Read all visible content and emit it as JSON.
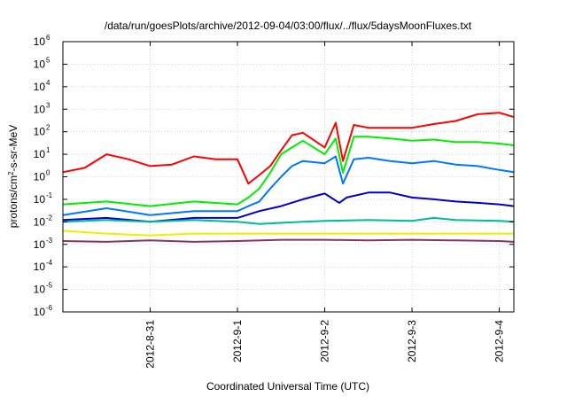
{
  "chart_data": {
    "type": "line",
    "title": "/data/run/goesPlots/archive/2012-09-04/03:00/flux/../flux/5daysMoonFluxes.txt",
    "xlabel": "Coordinated Universal Time (UTC)",
    "ylabel": "protons/cm²-s-sr-MeV",
    "ylabel_parts": {
      "pre": "protons/cm",
      "sup": "2",
      "post": "-s-sr-MeV"
    },
    "y_scale": "log",
    "ylim": [
      1e-06,
      1000000.0
    ],
    "xlim": [
      "2012-08-30 00:00",
      "2012-09-04 04:00"
    ],
    "grid": true,
    "x_ticks": [
      "2012-8-31",
      "2012-9-1",
      "2012-9-2",
      "2012-9-3",
      "2012-9-4"
    ],
    "y_ticks": [
      {
        "base": "10",
        "exp": "-6",
        "value": 1e-06
      },
      {
        "base": "10",
        "exp": "-5",
        "value": 1e-05
      },
      {
        "base": "10",
        "exp": "-4",
        "value": 0.0001
      },
      {
        "base": "10",
        "exp": "-3",
        "value": 0.001
      },
      {
        "base": "10",
        "exp": "-2",
        "value": 0.01
      },
      {
        "base": "10",
        "exp": "-1",
        "value": 0.1
      },
      {
        "base": "10",
        "exp": "0",
        "value": 1
      },
      {
        "base": "10",
        "exp": "1",
        "value": 10
      },
      {
        "base": "10",
        "exp": "2",
        "value": 100
      },
      {
        "base": "10",
        "exp": "3",
        "value": 1000
      },
      {
        "base": "10",
        "exp": "4",
        "value": 10000
      },
      {
        "base": "10",
        "exp": "5",
        "value": 100000
      },
      {
        "base": "10",
        "exp": "6",
        "value": 1000000
      }
    ],
    "series": [
      {
        "color": "#ff0000",
        "x": [
          "2012-08-30 00:00",
          "2012-08-30 06:00",
          "2012-08-30 12:00",
          "2012-08-30 18:00",
          "2012-08-31 00:00",
          "2012-08-31 06:00",
          "2012-08-31 12:00",
          "2012-08-31 18:00",
          "2012-09-01 00:00",
          "2012-09-01 03:00",
          "2012-09-01 06:00",
          "2012-09-01 09:00",
          "2012-09-01 12:00",
          "2012-09-01 15:00",
          "2012-09-01 18:00",
          "2012-09-02 00:00",
          "2012-09-02 03:00",
          "2012-09-02 05:00",
          "2012-09-02 08:00",
          "2012-09-02 12:00",
          "2012-09-02 18:00",
          "2012-09-03 00:00",
          "2012-09-03 06:00",
          "2012-09-03 12:00",
          "2012-09-03 18:00",
          "2012-09-04 00:00",
          "2012-09-04 04:00"
        ],
        "y": [
          1.6,
          2.5,
          10,
          6,
          3,
          3.5,
          8,
          6,
          6,
          0.5,
          1.2,
          3,
          15,
          70,
          90,
          20,
          250,
          5,
          200,
          150,
          150,
          150,
          220,
          300,
          600,
          700,
          450
        ]
      },
      {
        "color": "#00ee00",
        "x": [
          "2012-08-30 00:00",
          "2012-08-30 12:00",
          "2012-08-31 00:00",
          "2012-08-31 12:00",
          "2012-09-01 00:00",
          "2012-09-01 03:00",
          "2012-09-01 06:00",
          "2012-09-01 09:00",
          "2012-09-01 12:00",
          "2012-09-01 15:00",
          "2012-09-01 18:00",
          "2012-09-02 00:00",
          "2012-09-02 03:00",
          "2012-09-02 05:00",
          "2012-09-02 08:00",
          "2012-09-02 12:00",
          "2012-09-02 18:00",
          "2012-09-03 00:00",
          "2012-09-03 06:00",
          "2012-09-03 12:00",
          "2012-09-03 18:00",
          "2012-09-04 00:00",
          "2012-09-04 04:00"
        ],
        "y": [
          0.06,
          0.08,
          0.05,
          0.08,
          0.06,
          0.12,
          0.3,
          1.5,
          10,
          20,
          40,
          10,
          50,
          1.5,
          60,
          60,
          50,
          40,
          45,
          35,
          35,
          30,
          25
        ]
      },
      {
        "color": "#0077ff",
        "x": [
          "2012-08-30 00:00",
          "2012-08-30 12:00",
          "2012-08-31 00:00",
          "2012-08-31 12:00",
          "2012-09-01 00:00",
          "2012-09-01 03:00",
          "2012-09-01 06:00",
          "2012-09-01 09:00",
          "2012-09-01 12:00",
          "2012-09-01 15:00",
          "2012-09-01 18:00",
          "2012-09-02 00:00",
          "2012-09-02 03:00",
          "2012-09-02 05:00",
          "2012-09-02 08:00",
          "2012-09-02 12:00",
          "2012-09-02 18:00",
          "2012-09-03 00:00",
          "2012-09-03 06:00",
          "2012-09-03 12:00",
          "2012-09-03 18:00",
          "2012-09-04 00:00",
          "2012-09-04 04:00"
        ],
        "y": [
          0.02,
          0.04,
          0.02,
          0.03,
          0.03,
          0.05,
          0.08,
          0.3,
          1,
          3,
          5,
          4,
          8,
          0.5,
          6,
          7,
          5,
          4,
          5,
          3.5,
          3,
          2,
          1.6
        ]
      },
      {
        "color": "#0000cc",
        "x": [
          "2012-08-30 00:00",
          "2012-08-30 12:00",
          "2012-08-31 00:00",
          "2012-08-31 12:00",
          "2012-09-01 00:00",
          "2012-09-01 06:00",
          "2012-09-01 12:00",
          "2012-09-01 18:00",
          "2012-09-02 00:00",
          "2012-09-02 04:00",
          "2012-09-02 06:00",
          "2012-09-02 12:00",
          "2012-09-02 18:00",
          "2012-09-03 00:00",
          "2012-09-03 06:00",
          "2012-09-03 12:00",
          "2012-09-03 18:00",
          "2012-09-04 00:00",
          "2012-09-04 04:00"
        ],
        "y": [
          0.012,
          0.015,
          0.01,
          0.015,
          0.015,
          0.03,
          0.05,
          0.1,
          0.18,
          0.07,
          0.12,
          0.2,
          0.2,
          0.12,
          0.1,
          0.08,
          0.07,
          0.06,
          0.05
        ]
      },
      {
        "color": "#00bb99",
        "x": [
          "2012-08-30 00:00",
          "2012-08-30 12:00",
          "2012-08-31 00:00",
          "2012-08-31 12:00",
          "2012-09-01 00:00",
          "2012-09-01 06:00",
          "2012-09-01 12:00",
          "2012-09-01 18:00",
          "2012-09-02 00:00",
          "2012-09-02 12:00",
          "2012-09-03 00:00",
          "2012-09-03 06:00",
          "2012-09-03 12:00",
          "2012-09-04 00:00",
          "2012-09-04 04:00"
        ],
        "y": [
          0.01,
          0.012,
          0.01,
          0.012,
          0.01,
          0.008,
          0.009,
          0.01,
          0.011,
          0.012,
          0.011,
          0.015,
          0.012,
          0.011,
          0.01
        ]
      },
      {
        "color": "#eeee00",
        "x": [
          "2012-08-30 00:00",
          "2012-08-30 12:00",
          "2012-08-31 00:00",
          "2012-08-31 12:00",
          "2012-09-01 00:00",
          "2012-09-01 12:00",
          "2012-09-02 00:00",
          "2012-09-02 12:00",
          "2012-09-03 00:00",
          "2012-09-03 12:00",
          "2012-09-04 00:00",
          "2012-09-04 04:00"
        ],
        "y": [
          0.004,
          0.003,
          0.0025,
          0.003,
          0.003,
          0.003,
          0.003,
          0.003,
          0.003,
          0.003,
          0.003,
          0.003
        ]
      },
      {
        "color": "#883366",
        "x": [
          "2012-08-30 00:00",
          "2012-08-30 12:00",
          "2012-08-31 00:00",
          "2012-08-31 12:00",
          "2012-09-01 00:00",
          "2012-09-01 12:00",
          "2012-09-02 00:00",
          "2012-09-02 12:00",
          "2012-09-03 00:00",
          "2012-09-03 12:00",
          "2012-09-04 00:00",
          "2012-09-04 04:00"
        ],
        "y": [
          0.0014,
          0.0013,
          0.0015,
          0.0013,
          0.0014,
          0.0016,
          0.0016,
          0.0015,
          0.0016,
          0.0015,
          0.0014,
          0.0013
        ]
      }
    ]
  }
}
